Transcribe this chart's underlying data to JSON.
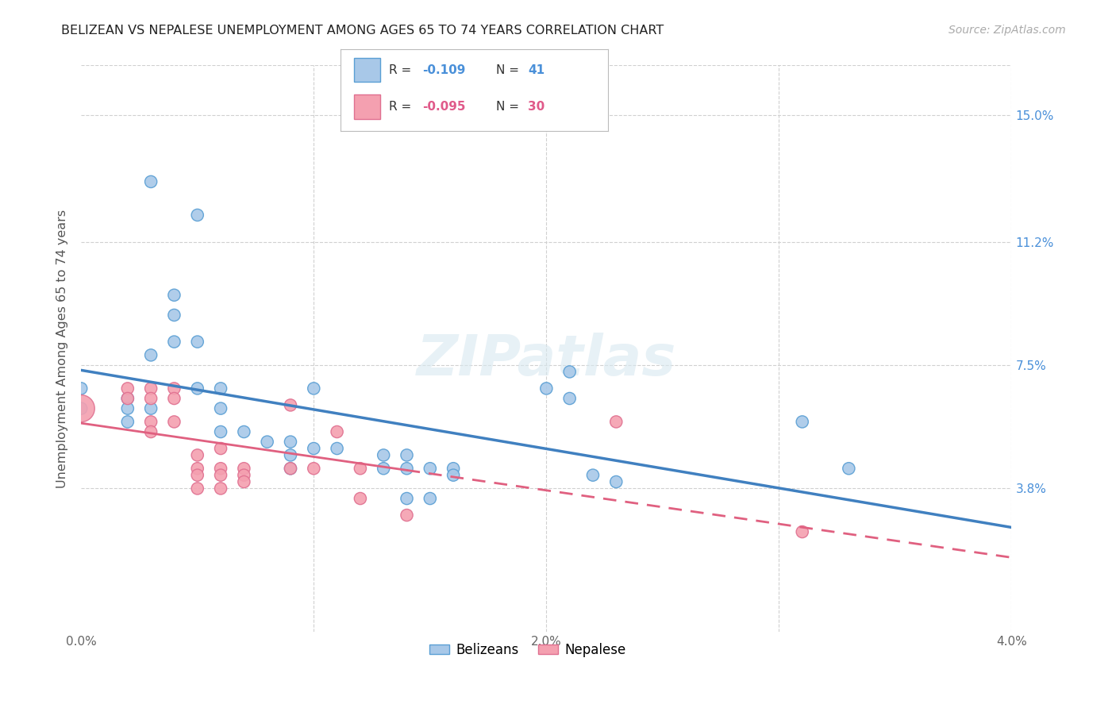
{
  "title": "BELIZEAN VS NEPALESE UNEMPLOYMENT AMONG AGES 65 TO 74 YEARS CORRELATION CHART",
  "source": "Source: ZipAtlas.com",
  "ylabel": "Unemployment Among Ages 65 to 74 years",
  "xlim": [
    0.0,
    0.04
  ],
  "ylim": [
    -0.005,
    0.165
  ],
  "xticks": [
    0.0,
    0.01,
    0.02,
    0.03,
    0.04
  ],
  "xticklabels": [
    "0.0%",
    "",
    "2.0%",
    "",
    "4.0%"
  ],
  "right_ytick_positions": [
    0.038,
    0.075,
    0.112,
    0.15
  ],
  "right_ytick_labels": [
    "3.8%",
    "7.5%",
    "11.2%",
    "15.0%"
  ],
  "belizean_R": "-0.109",
  "belizean_N": "41",
  "nepalese_R": "-0.095",
  "nepalese_N": "30",
  "blue_color": "#a8c8e8",
  "pink_color": "#f4a0b0",
  "blue_edge_color": "#5a9fd4",
  "pink_edge_color": "#e07090",
  "blue_line_color": "#4080c0",
  "pink_line_color": "#e06080",
  "blue_scatter": [
    [
      0.0,
      0.062
    ],
    [
      0.003,
      0.13
    ],
    [
      0.005,
      0.12
    ],
    [
      0.004,
      0.096
    ],
    [
      0.004,
      0.09
    ],
    [
      0.004,
      0.082
    ],
    [
      0.005,
      0.082
    ],
    [
      0.003,
      0.078
    ],
    [
      0.005,
      0.068
    ],
    [
      0.006,
      0.068
    ],
    [
      0.006,
      0.062
    ],
    [
      0.0,
      0.068
    ],
    [
      0.002,
      0.065
    ],
    [
      0.002,
      0.062
    ],
    [
      0.002,
      0.058
    ],
    [
      0.003,
      0.062
    ],
    [
      0.006,
      0.055
    ],
    [
      0.007,
      0.055
    ],
    [
      0.008,
      0.052
    ],
    [
      0.009,
      0.052
    ],
    [
      0.009,
      0.048
    ],
    [
      0.009,
      0.044
    ],
    [
      0.01,
      0.068
    ],
    [
      0.01,
      0.05
    ],
    [
      0.011,
      0.05
    ],
    [
      0.013,
      0.048
    ],
    [
      0.013,
      0.044
    ],
    [
      0.014,
      0.048
    ],
    [
      0.014,
      0.044
    ],
    [
      0.015,
      0.044
    ],
    [
      0.016,
      0.044
    ],
    [
      0.016,
      0.042
    ],
    [
      0.014,
      0.035
    ],
    [
      0.015,
      0.035
    ],
    [
      0.02,
      0.068
    ],
    [
      0.021,
      0.073
    ],
    [
      0.021,
      0.065
    ],
    [
      0.022,
      0.042
    ],
    [
      0.023,
      0.04
    ],
    [
      0.031,
      0.058
    ],
    [
      0.033,
      0.044
    ]
  ],
  "nepalese_scatter": [
    [
      0.0,
      0.062
    ],
    [
      0.002,
      0.068
    ],
    [
      0.002,
      0.065
    ],
    [
      0.003,
      0.068
    ],
    [
      0.003,
      0.065
    ],
    [
      0.003,
      0.058
    ],
    [
      0.003,
      0.055
    ],
    [
      0.004,
      0.068
    ],
    [
      0.004,
      0.065
    ],
    [
      0.004,
      0.058
    ],
    [
      0.005,
      0.048
    ],
    [
      0.005,
      0.044
    ],
    [
      0.005,
      0.042
    ],
    [
      0.005,
      0.038
    ],
    [
      0.006,
      0.05
    ],
    [
      0.006,
      0.044
    ],
    [
      0.006,
      0.042
    ],
    [
      0.006,
      0.038
    ],
    [
      0.007,
      0.044
    ],
    [
      0.007,
      0.042
    ],
    [
      0.007,
      0.04
    ],
    [
      0.009,
      0.063
    ],
    [
      0.009,
      0.044
    ],
    [
      0.01,
      0.044
    ],
    [
      0.011,
      0.055
    ],
    [
      0.012,
      0.044
    ],
    [
      0.012,
      0.035
    ],
    [
      0.014,
      0.03
    ],
    [
      0.023,
      0.058
    ],
    [
      0.031,
      0.025
    ]
  ],
  "nepalese_large_point": [
    0.0,
    0.062
  ],
  "watermark": "ZIPatlas",
  "background_color": "#ffffff",
  "grid_color": "#d0d0d0"
}
